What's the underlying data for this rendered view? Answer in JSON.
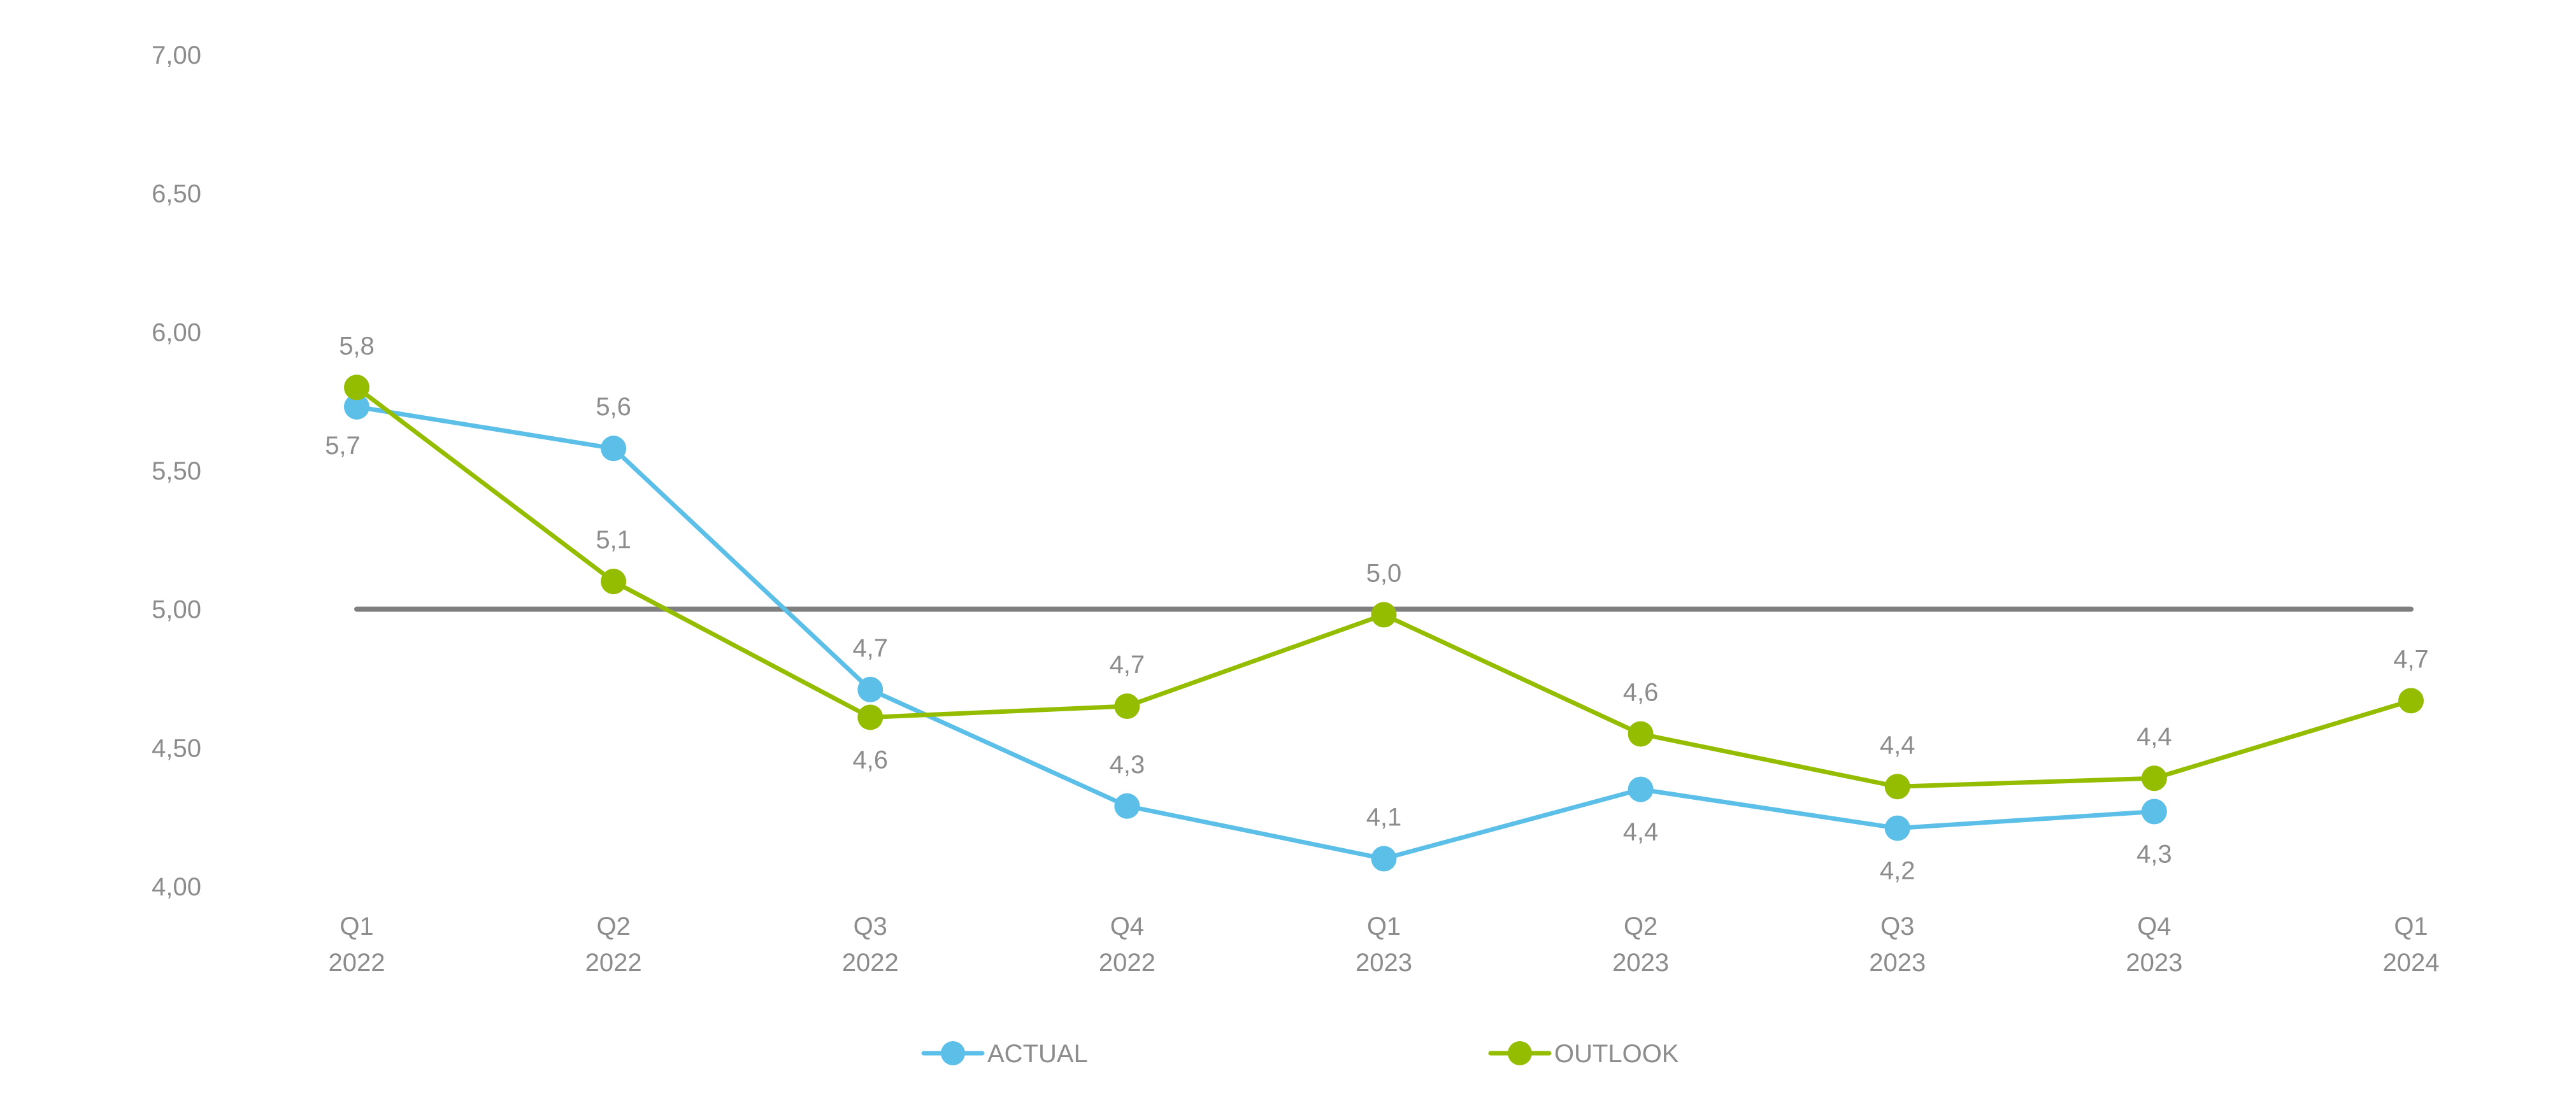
{
  "chart_data": {
    "type": "line",
    "title": "",
    "xlabel": "",
    "ylabel": "",
    "ylim": [
      4.0,
      7.0
    ],
    "yticks": [
      "7,00",
      "6,50",
      "6,00",
      "5,50",
      "5,00",
      "4,50",
      "4,00"
    ],
    "ytick_values": [
      7.0,
      6.5,
      6.0,
      5.5,
      5.0,
      4.5,
      4.0
    ],
    "categories": [
      [
        "Q1",
        "2022"
      ],
      [
        "Q2",
        "2022"
      ],
      [
        "Q3",
        "2022"
      ],
      [
        "Q4",
        "2022"
      ],
      [
        "Q1",
        "2023"
      ],
      [
        "Q2",
        "2023"
      ],
      [
        "Q3",
        "2023"
      ],
      [
        "Q4",
        "2023"
      ],
      [
        "Q1",
        "2024"
      ]
    ],
    "grid": false,
    "legend_position": "bottom",
    "reference_line": {
      "value": 5.0,
      "color": "#7f7f7f"
    },
    "series": [
      {
        "name": "ACTUAL",
        "color": "#5bbfe8",
        "values": [
          5.73,
          5.58,
          4.71,
          4.29,
          4.1,
          4.35,
          4.21,
          4.27,
          null
        ],
        "labels": [
          "5,7",
          "5,6",
          "4,7",
          "4,3",
          "4,1",
          "4,4",
          "4,2",
          "4,3",
          null
        ],
        "label_positions": [
          "below-left",
          "above",
          "above",
          "above",
          "above",
          "below",
          "below",
          "below",
          null
        ]
      },
      {
        "name": "OUTLOOK",
        "color": "#95bd00",
        "values": [
          5.8,
          5.1,
          4.61,
          4.65,
          4.98,
          4.55,
          4.36,
          4.39,
          4.67
        ],
        "labels": [
          "5,8",
          "5,1",
          "4,6",
          "4,7",
          "5,0",
          "4,6",
          "4,4",
          "4,4",
          "4,7"
        ],
        "label_positions": [
          "above",
          "above",
          "below",
          "above",
          "above",
          "above",
          "above",
          "above",
          "above"
        ]
      }
    ]
  },
  "legend": {
    "items": [
      {
        "label": "ACTUAL",
        "color": "#5bbfe8"
      },
      {
        "label": "OUTLOOK",
        "color": "#95bd00"
      }
    ]
  }
}
